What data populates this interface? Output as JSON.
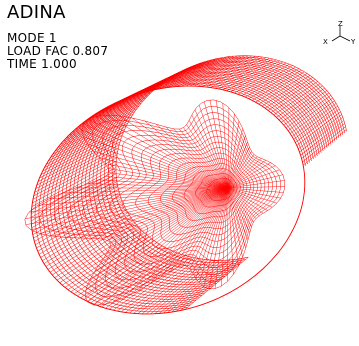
{
  "app": {
    "name": "ADINA"
  },
  "info": {
    "mode": "MODE 1",
    "load_factor": "LOAD FAC 0.807",
    "time": "TIME 1.000"
  },
  "triad": {
    "x": "X",
    "y": "Y",
    "z": "Z"
  },
  "mesh": {
    "color": "#ff0000",
    "description_icon": "wireframe-buckled-cylinder"
  }
}
